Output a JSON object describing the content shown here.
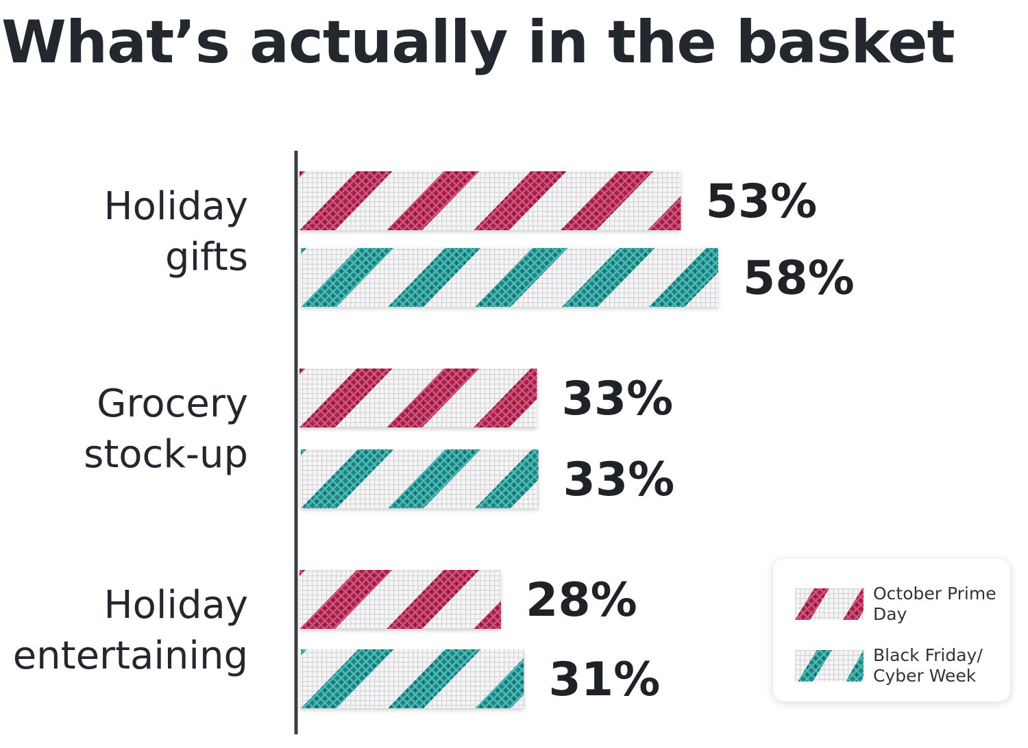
{
  "chart_data": {
    "type": "bar",
    "orientation": "horizontal",
    "title": "What’s actually in the basket",
    "categories": [
      "Holiday gifts",
      "Grocery stock-up",
      "Holiday entertaining"
    ],
    "category_lines": [
      [
        "Holiday",
        "gifts"
      ],
      [
        "Grocery",
        "stock-up"
      ],
      [
        "Holiday",
        "entertaining"
      ]
    ],
    "series": [
      {
        "name": "October Prime Day",
        "values": [
          53,
          33,
          28
        ],
        "labels": [
          "53%",
          "33%",
          "28%"
        ],
        "color": "#a3214a"
      },
      {
        "name": "Black Friday/ Cyber Week",
        "values": [
          58,
          33,
          31
        ],
        "labels": [
          "58%",
          "33%",
          "31%"
        ],
        "color": "#1c8583"
      }
    ],
    "unit": "%",
    "legend_position": "bottom-right",
    "grid": false
  },
  "legend": [
    {
      "label": "October Prime Day",
      "color": "#a3214a"
    },
    {
      "label": "Black Friday/ Cyber Week",
      "color": "#1c8583"
    }
  ]
}
